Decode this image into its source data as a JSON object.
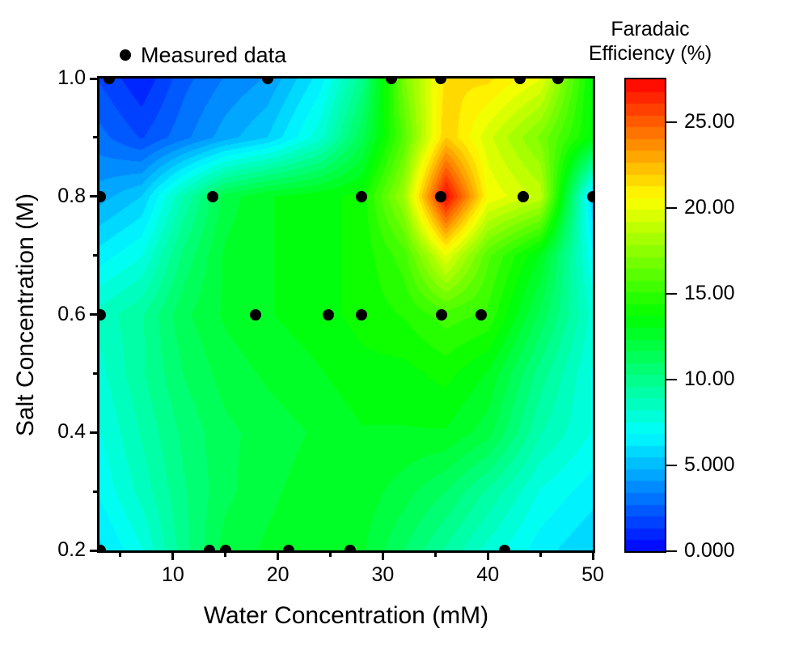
{
  "figure": {
    "legend": {
      "label": "Measured data",
      "marker": "black-filled-circle"
    },
    "x_axis": {
      "label": "Water Concentration (mM)",
      "major_ticks": [
        {
          "value": 10,
          "label": "10"
        },
        {
          "value": 20,
          "label": "20"
        },
        {
          "value": 30,
          "label": "30"
        },
        {
          "value": 40,
          "label": "40"
        },
        {
          "value": 50,
          "label": "50"
        }
      ],
      "minor_ticks": [
        5,
        15,
        25,
        35,
        45
      ]
    },
    "y_axis": {
      "label": "Salt Concentration (M)",
      "major_ticks": [
        {
          "value": 1.0,
          "label": "1.0"
        },
        {
          "value": 0.8,
          "label": "0.8"
        },
        {
          "value": 0.6,
          "label": "0.6"
        },
        {
          "value": 0.4,
          "label": "0.4"
        },
        {
          "value": 0.2,
          "label": "0.2"
        }
      ],
      "minor_ticks": [
        0.9,
        0.7,
        0.5,
        0.3
      ]
    },
    "colorbar": {
      "title_line1": "Faradaic",
      "title_line2": "Efficiency (%)",
      "levels": 40,
      "ticks": [
        {
          "value": 25,
          "label": "25.00"
        },
        {
          "value": 20,
          "label": "20.00"
        },
        {
          "value": 15,
          "label": "15.00"
        },
        {
          "value": 10,
          "label": "10.00"
        },
        {
          "value": 5,
          "label": "5.000"
        },
        {
          "value": 0,
          "label": "0.000"
        }
      ]
    },
    "chart_data": {
      "type": "heatmap",
      "subtype": "filled-contour",
      "title": "",
      "xlabel": "Water Concentration (mM)",
      "ylabel": "Salt Concentration (M)",
      "zlabel": "Faradaic Efficiency (%)",
      "xlim": [
        3,
        50
      ],
      "ylim": [
        0.2,
        1.0
      ],
      "zlim": [
        0,
        27.5
      ],
      "grid": false,
      "legend_position": "top-left-above-plot",
      "colormap": [
        [
          0.0,
          "#0000ff"
        ],
        [
          0.25,
          "#00ffff"
        ],
        [
          0.5,
          "#00ff00"
        ],
        [
          0.75,
          "#ffff00"
        ],
        [
          0.875,
          "#ff8000"
        ],
        [
          1.0,
          "#ff0000"
        ]
      ],
      "measured_points": [
        {
          "x": 3.9,
          "y": 1.0,
          "fe_estimate": 1.5
        },
        {
          "x": 19.0,
          "y": 1.0,
          "fe_estimate": 4.0
        },
        {
          "x": 30.8,
          "y": 1.0,
          "fe_estimate": 16.5
        },
        {
          "x": 35.5,
          "y": 1.0,
          "fe_estimate": 21.5
        },
        {
          "x": 43.1,
          "y": 1.0,
          "fe_estimate": 20.5
        },
        {
          "x": 46.7,
          "y": 1.0,
          "fe_estimate": 16.0
        },
        {
          "x": 3.1,
          "y": 0.8,
          "fe_estimate": 4.5
        },
        {
          "x": 13.8,
          "y": 0.8,
          "fe_estimate": 12.0
        },
        {
          "x": 28.0,
          "y": 0.8,
          "fe_estimate": 14.0
        },
        {
          "x": 35.5,
          "y": 0.8,
          "fe_estimate": 27.5
        },
        {
          "x": 43.4,
          "y": 0.8,
          "fe_estimate": 20.0
        },
        {
          "x": 50.0,
          "y": 0.8,
          "fe_estimate": 5.5
        },
        {
          "x": 3.1,
          "y": 0.6,
          "fe_estimate": 8.5
        },
        {
          "x": 17.9,
          "y": 0.6,
          "fe_estimate": 13.0
        },
        {
          "x": 24.8,
          "y": 0.6,
          "fe_estimate": 13.5
        },
        {
          "x": 28.0,
          "y": 0.6,
          "fe_estimate": 14.0
        },
        {
          "x": 35.6,
          "y": 0.6,
          "fe_estimate": 15.5
        },
        {
          "x": 39.4,
          "y": 0.6,
          "fe_estimate": 15.0
        },
        {
          "x": 3.1,
          "y": 0.2,
          "fe_estimate": 6.0
        },
        {
          "x": 13.5,
          "y": 0.2,
          "fe_estimate": 12.0
        },
        {
          "x": 15.0,
          "y": 0.2,
          "fe_estimate": 12.0
        },
        {
          "x": 21.0,
          "y": 0.2,
          "fe_estimate": 13.0
        },
        {
          "x": 26.9,
          "y": 0.2,
          "fe_estimate": 12.5
        },
        {
          "x": 41.6,
          "y": 0.2,
          "fe_estimate": 7.5
        }
      ],
      "surface_grid": {
        "x": [
          3,
          7,
          11,
          15,
          19,
          24,
          28,
          32,
          36,
          40,
          45,
          50
        ],
        "y": [
          1.0,
          0.9,
          0.8,
          0.7,
          0.6,
          0.5,
          0.4,
          0.3,
          0.2
        ],
        "fe": [
          [
            2.0,
            0.8,
            2.5,
            3.5,
            4.2,
            6.5,
            10.0,
            17.0,
            21.5,
            21.5,
            20.0,
            13.5
          ],
          [
            3.0,
            2.0,
            3.2,
            4.5,
            5.5,
            8.0,
            11.5,
            16.0,
            22.0,
            19.5,
            17.0,
            13.5
          ],
          [
            4.5,
            5.5,
            9.0,
            12.0,
            13.0,
            13.5,
            14.0,
            18.0,
            27.5,
            20.5,
            19.0,
            5.5
          ],
          [
            6.5,
            7.5,
            10.5,
            12.5,
            13.0,
            13.5,
            14.0,
            15.5,
            20.0,
            16.0,
            13.0,
            7.0
          ],
          [
            8.5,
            9.5,
            11.5,
            12.5,
            13.0,
            13.5,
            14.0,
            14.5,
            15.5,
            15.0,
            11.5,
            8.0
          ],
          [
            8.0,
            9.5,
            11.0,
            12.0,
            12.5,
            13.0,
            13.5,
            13.5,
            14.0,
            13.0,
            10.0,
            7.5
          ],
          [
            7.5,
            9.0,
            10.5,
            11.5,
            12.0,
            12.5,
            13.0,
            13.0,
            13.0,
            12.0,
            9.0,
            7.5
          ],
          [
            7.0,
            8.5,
            10.2,
            11.5,
            12.2,
            12.8,
            12.8,
            12.0,
            11.0,
            9.5,
            7.5,
            6.5
          ],
          [
            6.0,
            7.5,
            10.0,
            12.0,
            12.5,
            13.0,
            12.5,
            11.0,
            9.5,
            8.0,
            6.5,
            5.5
          ]
        ]
      }
    },
    "colors": {
      "marker": "#000000",
      "axis": "#000000",
      "background": "#ffffff"
    }
  }
}
